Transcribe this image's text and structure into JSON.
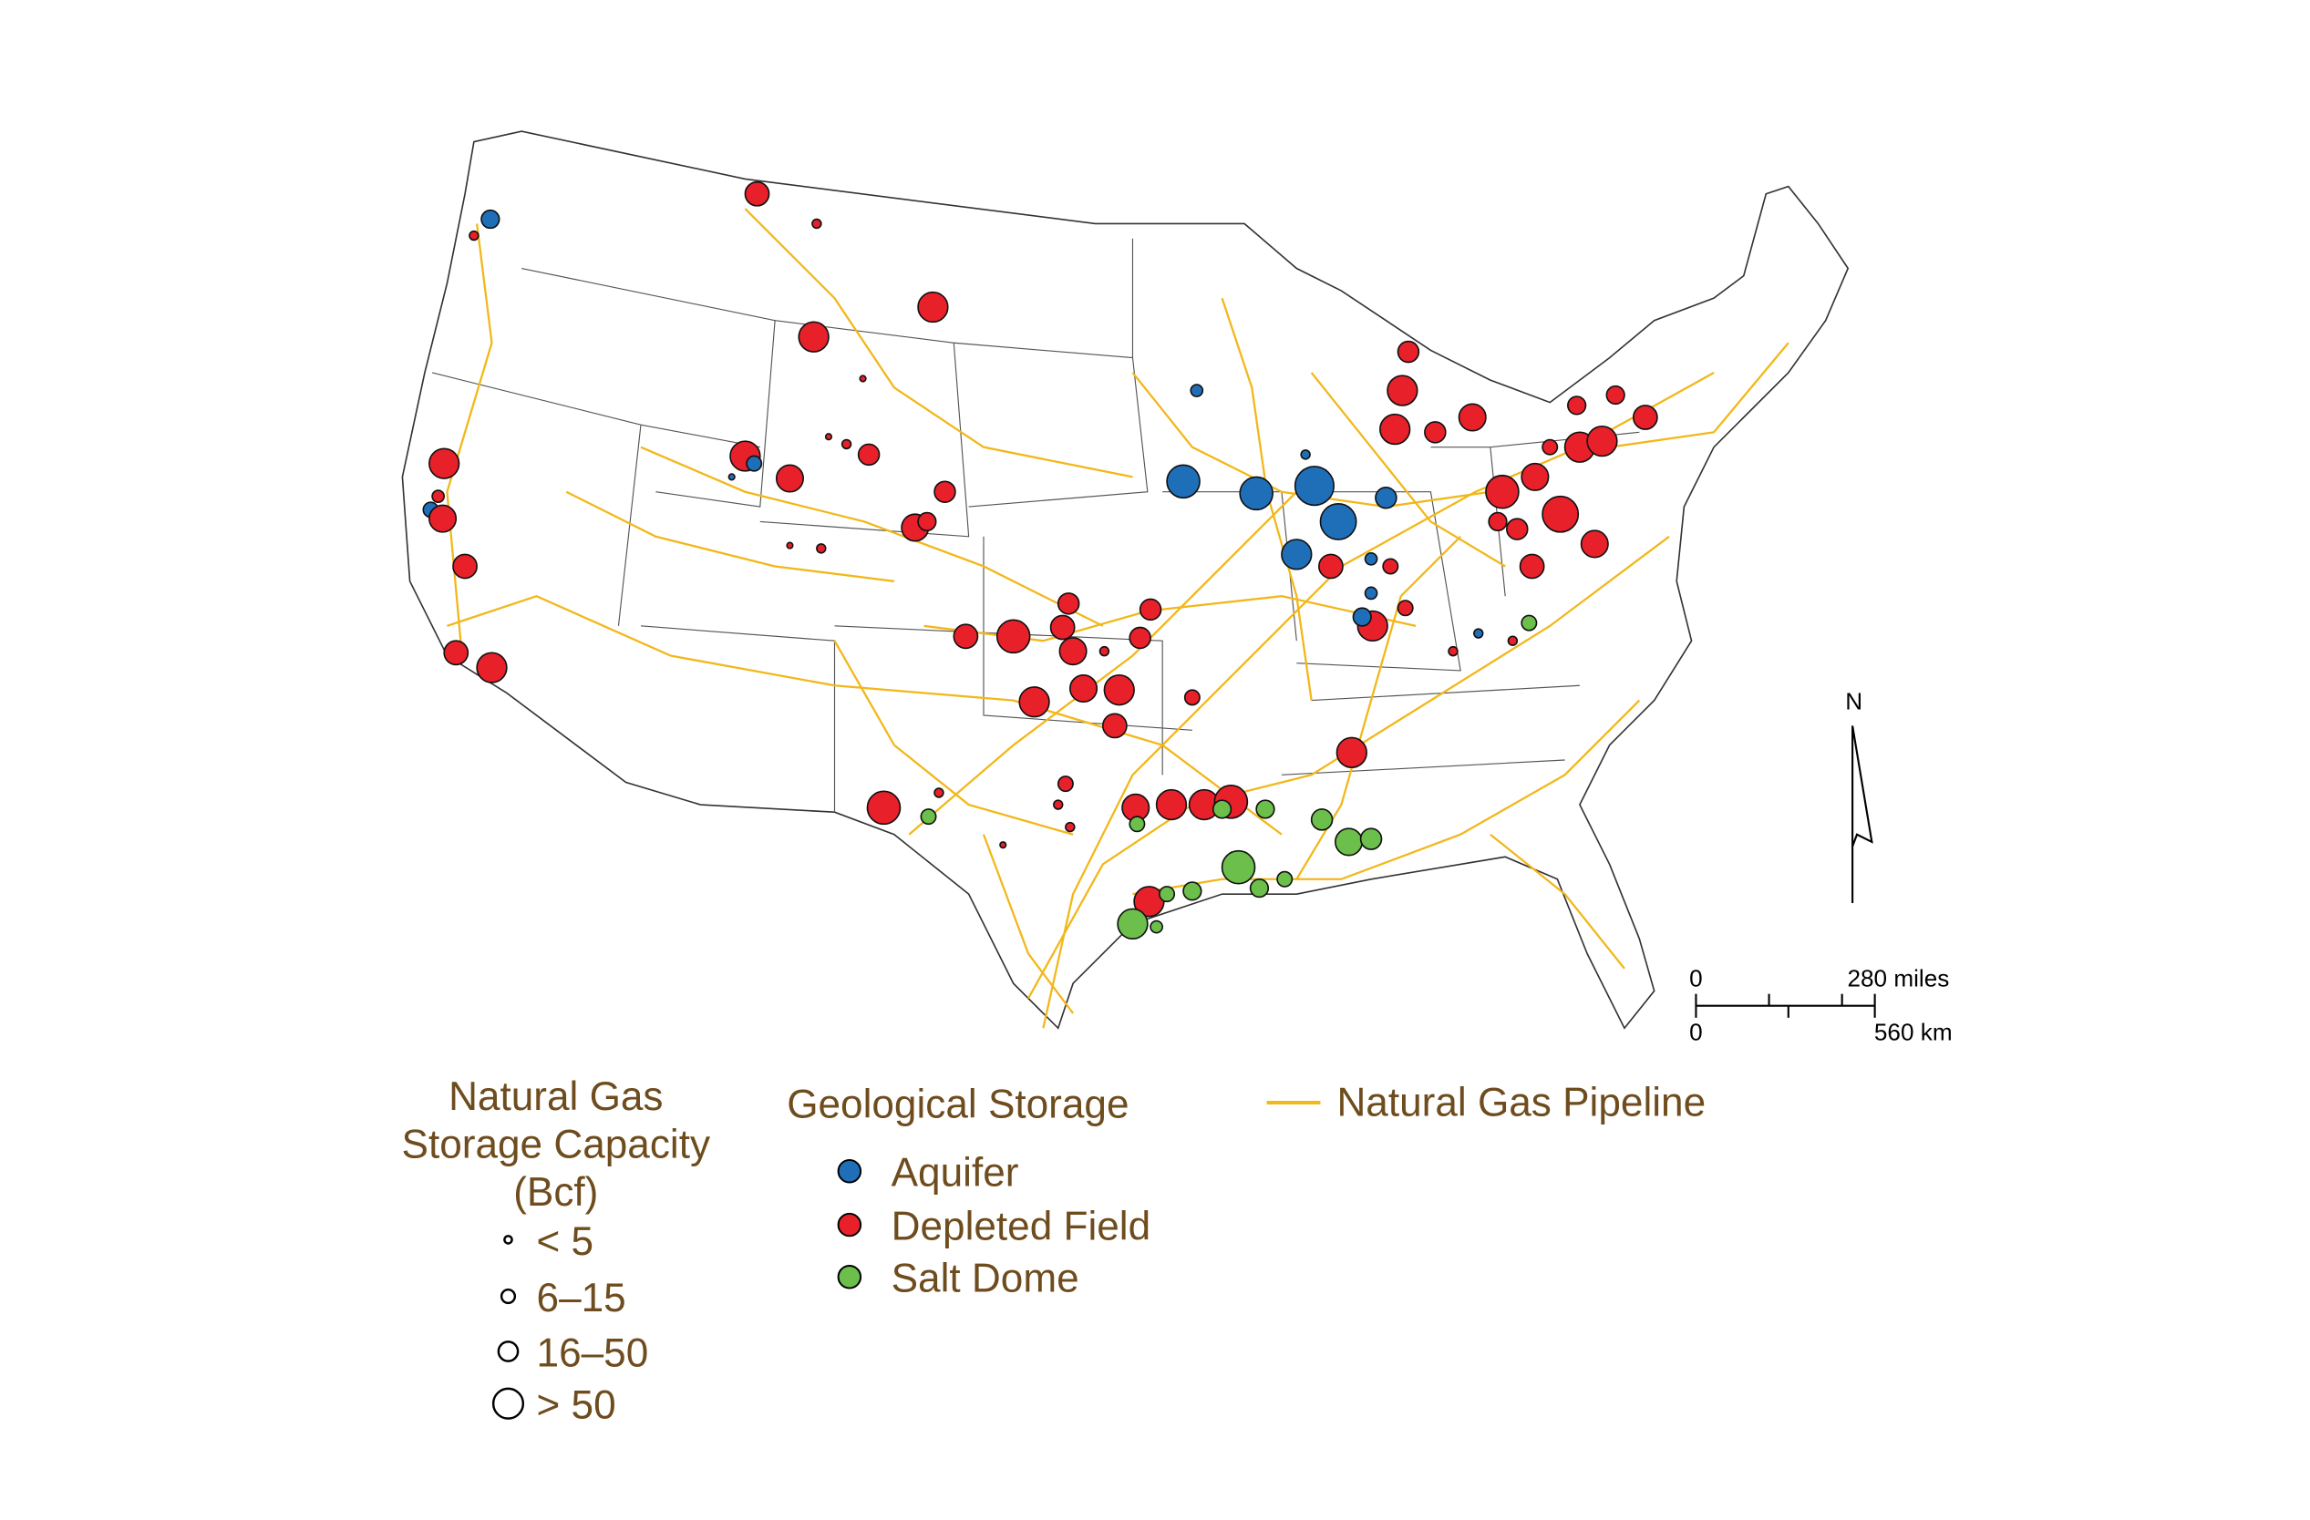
{
  "legend": {
    "capacity": {
      "title_lines": [
        "Natural Gas",
        "Storage Capacity",
        "(Bcf)"
      ],
      "classes": [
        "< 5",
        "6–15",
        "16–50",
        "> 50"
      ]
    },
    "storage": {
      "title": "Geological Storage",
      "types": [
        "Aquifer",
        "Depleted Field",
        "Salt Dome"
      ]
    },
    "pipeline": "Natural Gas Pipeline"
  },
  "north_arrow": "N",
  "scale_bar": {
    "miles": [
      "0",
      "280 miles"
    ],
    "km": [
      "0",
      "560 km"
    ]
  }
}
